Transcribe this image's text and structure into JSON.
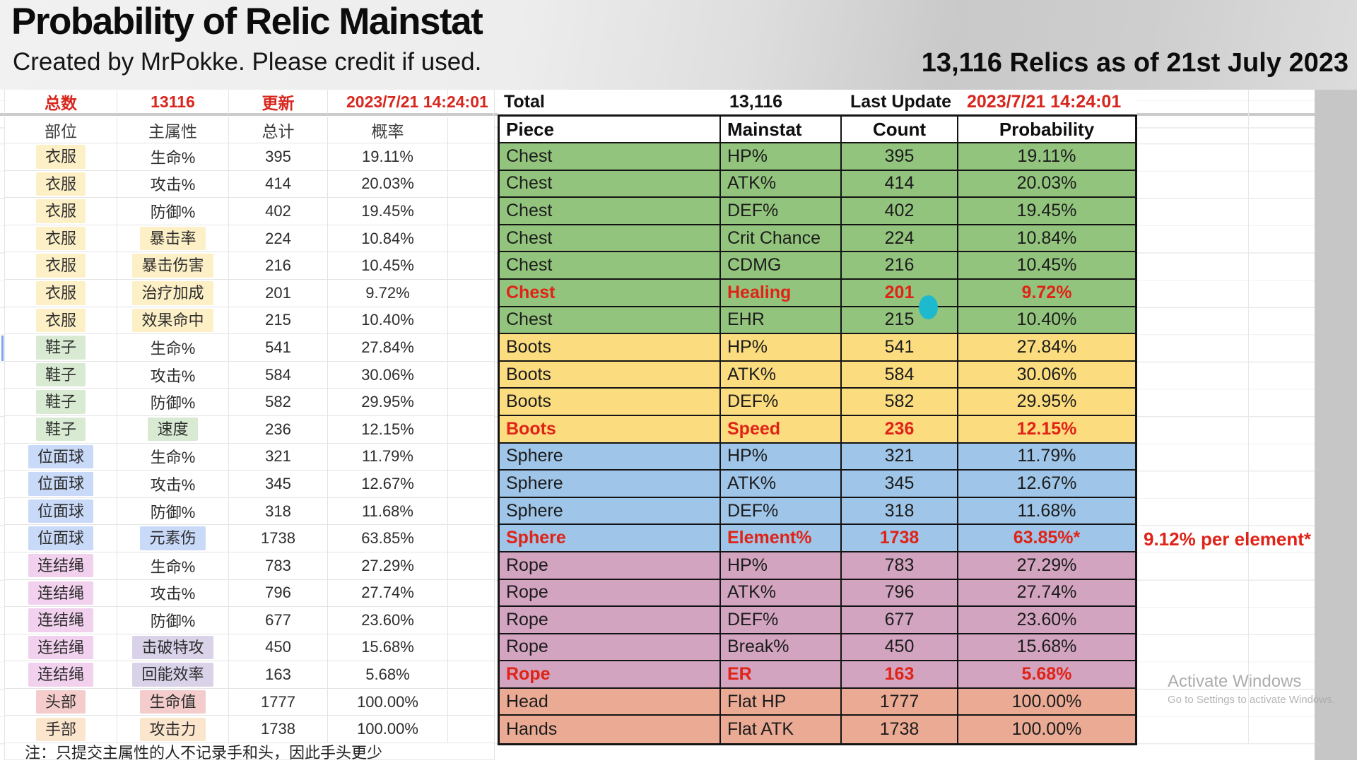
{
  "header": {
    "title": "Probability of Relic Mainstat",
    "subtitle": "Created by MrPokke. Please credit if used.",
    "stats": "13,116 Relics as of 21st July 2023"
  },
  "cn_table": {
    "info_row": [
      "总数",
      "13116",
      "更新",
      "2023/7/21 14:24:01"
    ],
    "headers": [
      "部位",
      "主属性",
      "总计",
      "概率"
    ],
    "rows": [
      {
        "piece": "衣服",
        "stat": "生命%",
        "count": "395",
        "prob": "19.11%",
        "group": "chest",
        "statHL": false
      },
      {
        "piece": "衣服",
        "stat": "攻击%",
        "count": "414",
        "prob": "20.03%",
        "group": "chest",
        "statHL": false
      },
      {
        "piece": "衣服",
        "stat": "防御%",
        "count": "402",
        "prob": "19.45%",
        "group": "chest",
        "statHL": false
      },
      {
        "piece": "衣服",
        "stat": "暴击率",
        "count": "224",
        "prob": "10.84%",
        "group": "chest",
        "statHL": true
      },
      {
        "piece": "衣服",
        "stat": "暴击伤害",
        "count": "216",
        "prob": "10.45%",
        "group": "chest",
        "statHL": true
      },
      {
        "piece": "衣服",
        "stat": "治疗加成",
        "count": "201",
        "prob": "9.72%",
        "group": "chest",
        "statHL": true
      },
      {
        "piece": "衣服",
        "stat": "效果命中",
        "count": "215",
        "prob": "10.40%",
        "group": "chest",
        "statHL": true
      },
      {
        "piece": "鞋子",
        "stat": "生命%",
        "count": "541",
        "prob": "27.84%",
        "group": "boots",
        "statHL": false
      },
      {
        "piece": "鞋子",
        "stat": "攻击%",
        "count": "584",
        "prob": "30.06%",
        "group": "boots",
        "statHL": false
      },
      {
        "piece": "鞋子",
        "stat": "防御%",
        "count": "582",
        "prob": "29.95%",
        "group": "boots",
        "statHL": false
      },
      {
        "piece": "鞋子",
        "stat": "速度",
        "count": "236",
        "prob": "12.15%",
        "group": "boots",
        "statHL": true
      },
      {
        "piece": "位面球",
        "stat": "生命%",
        "count": "321",
        "prob": "11.79%",
        "group": "sphere",
        "statHL": false
      },
      {
        "piece": "位面球",
        "stat": "攻击%",
        "count": "345",
        "prob": "12.67%",
        "group": "sphere",
        "statHL": false
      },
      {
        "piece": "位面球",
        "stat": "防御%",
        "count": "318",
        "prob": "11.68%",
        "group": "sphere",
        "statHL": false
      },
      {
        "piece": "位面球",
        "stat": "元素伤",
        "count": "1738",
        "prob": "63.85%",
        "group": "sphere",
        "statHL": true
      },
      {
        "piece": "连结绳",
        "stat": "生命%",
        "count": "783",
        "prob": "27.29%",
        "group": "rope",
        "statHL": false
      },
      {
        "piece": "连结绳",
        "stat": "攻击%",
        "count": "796",
        "prob": "27.74%",
        "group": "rope",
        "statHL": false
      },
      {
        "piece": "连结绳",
        "stat": "防御%",
        "count": "677",
        "prob": "23.60%",
        "group": "rope",
        "statHL": false
      },
      {
        "piece": "连结绳",
        "stat": "击破特攻",
        "count": "450",
        "prob": "15.68%",
        "group": "rope",
        "statHL": true
      },
      {
        "piece": "连结绳",
        "stat": "回能效率",
        "count": "163",
        "prob": "5.68%",
        "group": "rope",
        "statHL": true
      },
      {
        "piece": "头部",
        "stat": "生命值",
        "count": "1777",
        "prob": "100.00%",
        "group": "head",
        "statHL": true
      },
      {
        "piece": "手部",
        "stat": "攻击力",
        "count": "1738",
        "prob": "100.00%",
        "group": "hands",
        "statHL": true
      }
    ],
    "note": "注：只提交主属性的人不记录手和头，因此手头更少"
  },
  "en_table": {
    "info_row": [
      "Total",
      "13,116",
      "Last Update",
      "2023/7/21 14:24:01"
    ],
    "headers": [
      "Piece",
      "Mainstat",
      "Count",
      "Probability"
    ],
    "rows": [
      {
        "piece": "Chest",
        "stat": "HP%",
        "count": "395",
        "prob": "19.11%",
        "group": "chest",
        "red": false
      },
      {
        "piece": "Chest",
        "stat": "ATK%",
        "count": "414",
        "prob": "20.03%",
        "group": "chest",
        "red": false
      },
      {
        "piece": "Chest",
        "stat": "DEF%",
        "count": "402",
        "prob": "19.45%",
        "group": "chest",
        "red": false
      },
      {
        "piece": "Chest",
        "stat": "Crit Chance",
        "count": "224",
        "prob": "10.84%",
        "group": "chest",
        "red": false
      },
      {
        "piece": "Chest",
        "stat": "CDMG",
        "count": "216",
        "prob": "10.45%",
        "group": "chest",
        "red": false
      },
      {
        "piece": "Chest",
        "stat": "Healing",
        "count": "201",
        "prob": "9.72%",
        "group": "chest",
        "red": true
      },
      {
        "piece": "Chest",
        "stat": "EHR",
        "count": "215",
        "prob": "10.40%",
        "group": "chest",
        "red": false
      },
      {
        "piece": "Boots",
        "stat": "HP%",
        "count": "541",
        "prob": "27.84%",
        "group": "boots",
        "red": false
      },
      {
        "piece": "Boots",
        "stat": "ATK%",
        "count": "584",
        "prob": "30.06%",
        "group": "boots",
        "red": false
      },
      {
        "piece": "Boots",
        "stat": "DEF%",
        "count": "582",
        "prob": "29.95%",
        "group": "boots",
        "red": false
      },
      {
        "piece": "Boots",
        "stat": "Speed",
        "count": "236",
        "prob": "12.15%",
        "group": "boots",
        "red": true
      },
      {
        "piece": "Sphere",
        "stat": "HP%",
        "count": "321",
        "prob": "11.79%",
        "group": "sphere",
        "red": false
      },
      {
        "piece": "Sphere",
        "stat": "ATK%",
        "count": "345",
        "prob": "12.67%",
        "group": "sphere",
        "red": false
      },
      {
        "piece": "Sphere",
        "stat": "DEF%",
        "count": "318",
        "prob": "11.68%",
        "group": "sphere",
        "red": false
      },
      {
        "piece": "Sphere",
        "stat": "Element%",
        "count": "1738",
        "prob": "63.85%*",
        "group": "sphere",
        "red": true
      },
      {
        "piece": "Rope",
        "stat": "HP%",
        "count": "783",
        "prob": "27.29%",
        "group": "rope",
        "red": false
      },
      {
        "piece": "Rope",
        "stat": "ATK%",
        "count": "796",
        "prob": "27.74%",
        "group": "rope",
        "red": false
      },
      {
        "piece": "Rope",
        "stat": "DEF%",
        "count": "677",
        "prob": "23.60%",
        "group": "rope",
        "red": false
      },
      {
        "piece": "Rope",
        "stat": "Break%",
        "count": "450",
        "prob": "15.68%",
        "group": "rope",
        "red": false
      },
      {
        "piece": "Rope",
        "stat": "ER",
        "count": "163",
        "prob": "5.68%",
        "group": "rope",
        "red": true
      },
      {
        "piece": "Head",
        "stat": "Flat HP",
        "count": "1777",
        "prob": "100.00%",
        "group": "head",
        "red": false
      },
      {
        "piece": "Hands",
        "stat": "Flat ATK",
        "count": "1738",
        "prob": "100.00%",
        "group": "hands",
        "red": false
      }
    ],
    "annotation": "9.12% per element*"
  },
  "watermark": {
    "line1": "Activate Windows",
    "line2": "Go to Settings to activate Windows."
  },
  "colors": {
    "red": "#d7261d",
    "red_bold": "#e02317",
    "cursor_dot": "#1cb9cf",
    "en_groups": {
      "chest": "#93c47d",
      "boots": "#fbdc7f",
      "sphere": "#9fc5e8",
      "rope": "#d2a4bf",
      "head": "#eaaa94",
      "hands": "#eaaa94"
    },
    "cn_piece": {
      "chest": "#fdf0c6",
      "boots": "#d9ead3",
      "sphere": "#c9daf8",
      "rope": "#f2d1ee",
      "head": "#f4cccc",
      "hands": "#fce5cd"
    },
    "cn_stat": {
      "chest": "#fdf0c6",
      "boots": "#d9ead3",
      "sphere": "#c9daf8",
      "rope": "#d9d2e9",
      "head": "#f4cccc",
      "hands": "#fce5cd"
    }
  }
}
